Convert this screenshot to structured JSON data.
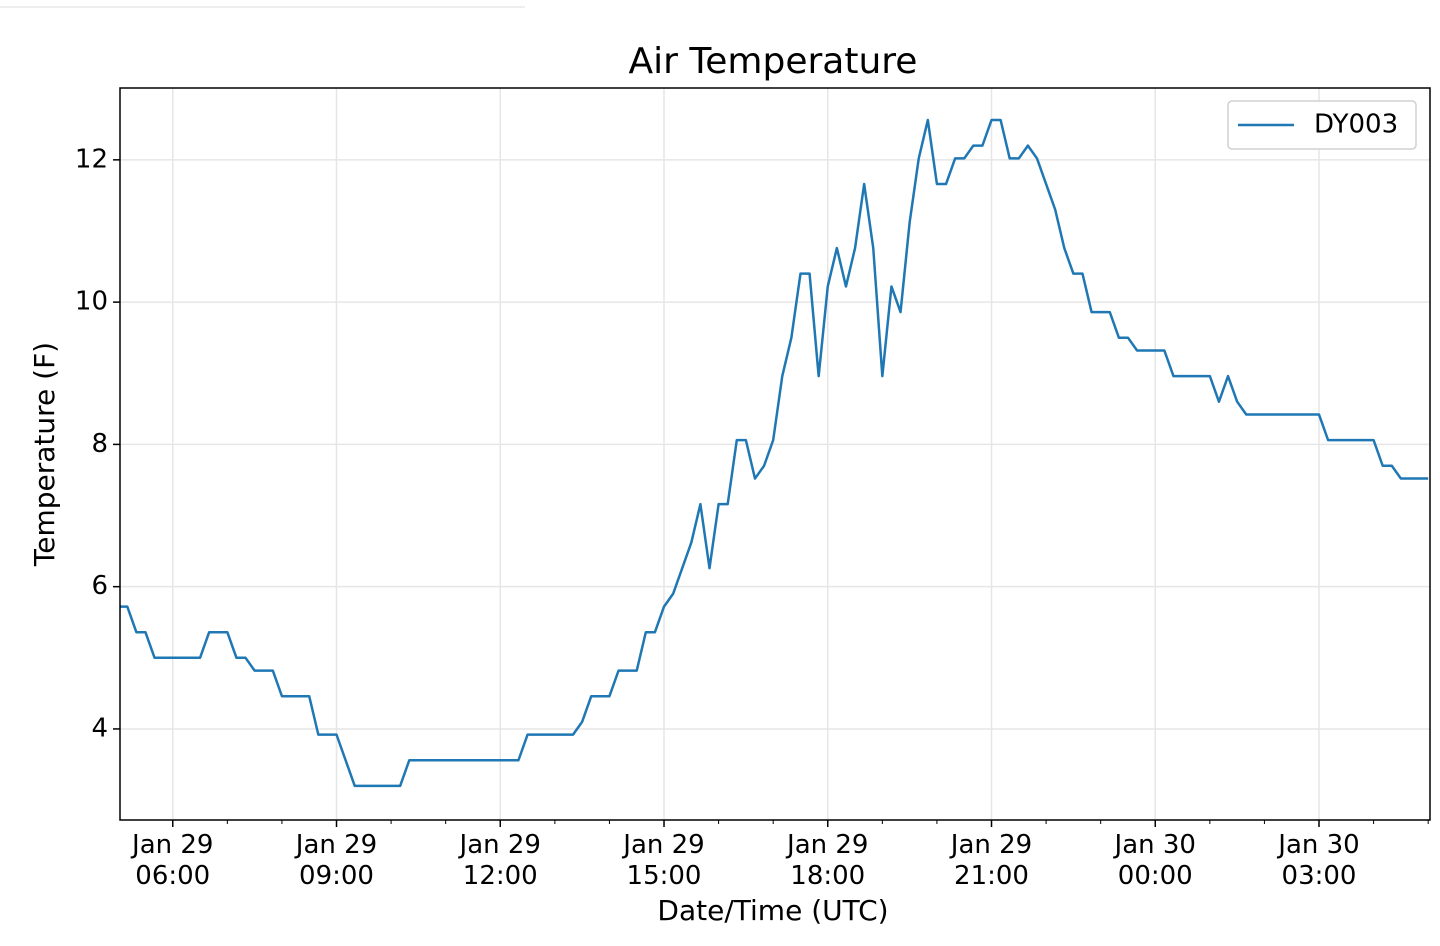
{
  "chart_data": {
    "type": "line",
    "title": "Air Temperature",
    "x_label": "Date/Time (UTC)",
    "y_label": "Temperature (F)",
    "x": [
      "Jan 29 05:00",
      "Jan 29 05:10",
      "Jan 29 05:20",
      "Jan 29 05:30",
      "Jan 29 05:40",
      "Jan 29 05:50",
      "Jan 29 06:00",
      "Jan 29 06:10",
      "Jan 29 06:20",
      "Jan 29 06:30",
      "Jan 29 06:40",
      "Jan 29 06:50",
      "Jan 29 07:00",
      "Jan 29 07:10",
      "Jan 29 07:20",
      "Jan 29 07:30",
      "Jan 29 07:40",
      "Jan 29 07:50",
      "Jan 29 08:00",
      "Jan 29 08:10",
      "Jan 29 08:20",
      "Jan 29 08:30",
      "Jan 29 08:40",
      "Jan 29 08:50",
      "Jan 29 09:00",
      "Jan 29 09:10",
      "Jan 29 09:20",
      "Jan 29 09:30",
      "Jan 29 09:40",
      "Jan 29 09:50",
      "Jan 29 10:00",
      "Jan 29 10:10",
      "Jan 29 10:20",
      "Jan 29 10:30",
      "Jan 29 10:40",
      "Jan 29 10:50",
      "Jan 29 11:00",
      "Jan 29 11:10",
      "Jan 29 11:20",
      "Jan 29 11:30",
      "Jan 29 11:40",
      "Jan 29 11:50",
      "Jan 29 12:00",
      "Jan 29 12:10",
      "Jan 29 12:20",
      "Jan 29 12:30",
      "Jan 29 12:40",
      "Jan 29 12:50",
      "Jan 29 13:00",
      "Jan 29 13:10",
      "Jan 29 13:20",
      "Jan 29 13:30",
      "Jan 29 13:40",
      "Jan 29 13:50",
      "Jan 29 14:00",
      "Jan 29 14:10",
      "Jan 29 14:20",
      "Jan 29 14:30",
      "Jan 29 14:40",
      "Jan 29 14:50",
      "Jan 29 15:00",
      "Jan 29 15:10",
      "Jan 29 15:20",
      "Jan 29 15:30",
      "Jan 29 15:40",
      "Jan 29 15:50",
      "Jan 29 16:00",
      "Jan 29 16:10",
      "Jan 29 16:20",
      "Jan 29 16:30",
      "Jan 29 16:40",
      "Jan 29 16:50",
      "Jan 29 17:00",
      "Jan 29 17:10",
      "Jan 29 17:20",
      "Jan 29 17:30",
      "Jan 29 17:40",
      "Jan 29 17:50",
      "Jan 29 18:00",
      "Jan 29 18:10",
      "Jan 29 18:20",
      "Jan 29 18:30",
      "Jan 29 18:40",
      "Jan 29 18:50",
      "Jan 29 19:00",
      "Jan 29 19:10",
      "Jan 29 19:20",
      "Jan 29 19:30",
      "Jan 29 19:40",
      "Jan 29 19:50",
      "Jan 29 20:00",
      "Jan 29 20:10",
      "Jan 29 20:20",
      "Jan 29 20:30",
      "Jan 29 20:40",
      "Jan 29 20:50",
      "Jan 29 21:00",
      "Jan 29 21:10",
      "Jan 29 21:20",
      "Jan 29 21:30",
      "Jan 29 21:40",
      "Jan 29 21:50",
      "Jan 29 22:00",
      "Jan 29 22:10",
      "Jan 29 22:20",
      "Jan 29 22:30",
      "Jan 29 22:40",
      "Jan 29 22:50",
      "Jan 29 23:00",
      "Jan 29 23:10",
      "Jan 29 23:20",
      "Jan 29 23:30",
      "Jan 29 23:40",
      "Jan 29 23:50",
      "Jan 30 00:00",
      "Jan 30 00:10",
      "Jan 30 00:20",
      "Jan 30 00:30",
      "Jan 30 00:40",
      "Jan 30 00:50",
      "Jan 30 01:00",
      "Jan 30 01:10",
      "Jan 30 01:20",
      "Jan 30 01:30",
      "Jan 30 01:40",
      "Jan 30 01:50",
      "Jan 30 02:00",
      "Jan 30 02:10",
      "Jan 30 02:20",
      "Jan 30 02:30",
      "Jan 30 02:40",
      "Jan 30 02:50",
      "Jan 30 03:00",
      "Jan 30 03:10",
      "Jan 30 03:20",
      "Jan 30 03:30",
      "Jan 30 03:40",
      "Jan 30 03:50",
      "Jan 30 04:00",
      "Jan 30 04:10",
      "Jan 30 04:20",
      "Jan 30 04:30",
      "Jan 30 04:40",
      "Jan 30 04:50",
      "Jan 30 05:00"
    ],
    "series": [
      {
        "name": "DY003",
        "color": "#1f77b4",
        "values": [
          5.72,
          5.72,
          5.36,
          5.36,
          5.0,
          5.0,
          5.0,
          5.0,
          5.0,
          5.0,
          5.36,
          5.36,
          5.36,
          5.0,
          5.0,
          4.82,
          4.82,
          4.82,
          4.46,
          4.46,
          4.46,
          4.46,
          3.92,
          3.92,
          3.92,
          3.56,
          3.2,
          3.2,
          3.2,
          3.2,
          3.2,
          3.2,
          3.56,
          3.56,
          3.56,
          3.56,
          3.56,
          3.56,
          3.56,
          3.56,
          3.56,
          3.56,
          3.56,
          3.56,
          3.56,
          3.92,
          3.92,
          3.92,
          3.92,
          3.92,
          3.92,
          4.1,
          4.46,
          4.46,
          4.46,
          4.82,
          4.82,
          4.82,
          5.36,
          5.36,
          5.72,
          5.9,
          6.26,
          6.62,
          7.16,
          6.26,
          7.16,
          7.16,
          8.06,
          8.06,
          7.52,
          7.7,
          8.06,
          8.96,
          9.5,
          10.4,
          10.4,
          8.96,
          10.22,
          10.76,
          10.22,
          10.76,
          11.66,
          10.76,
          8.96,
          10.22,
          9.86,
          11.12,
          12.02,
          12.56,
          11.66,
          11.66,
          12.02,
          12.02,
          12.2,
          12.2,
          12.56,
          12.56,
          12.02,
          12.02,
          12.2,
          12.02,
          11.66,
          11.3,
          10.76,
          10.4,
          10.4,
          9.86,
          9.86,
          9.86,
          9.5,
          9.5,
          9.32,
          9.32,
          9.32,
          9.32,
          8.96,
          8.96,
          8.96,
          8.96,
          8.96,
          8.6,
          8.96,
          8.6,
          8.42,
          8.42,
          8.42,
          8.42,
          8.42,
          8.42,
          8.42,
          8.42,
          8.42,
          8.06,
          8.06,
          8.06,
          8.06,
          8.06,
          8.06,
          7.7,
          7.7,
          7.52,
          7.52,
          7.52,
          7.52
        ]
      }
    ],
    "xlim": [
      "Jan 29 05:02",
      "Jan 30 05:02"
    ],
    "xticks": [
      "Jan 29 06:00",
      "Jan 29 09:00",
      "Jan 29 12:00",
      "Jan 29 15:00",
      "Jan 29 18:00",
      "Jan 29 21:00",
      "Jan 30 00:00",
      "Jan 30 03:00"
    ],
    "ylim": [
      2.72,
      13.01
    ],
    "yticks": [
      4,
      6,
      8,
      10,
      12
    ],
    "grid": true,
    "legend": "upper right"
  }
}
